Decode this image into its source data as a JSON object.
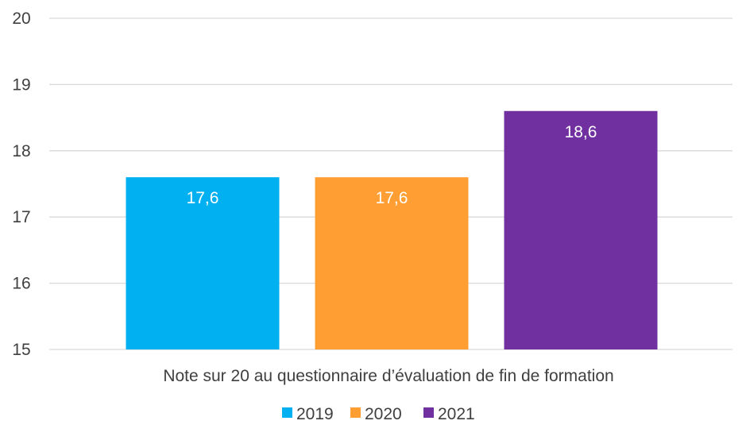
{
  "chart_data": {
    "type": "bar",
    "categories": [
      "Note sur 20 au questionnaire d’évaluation de fin de formation"
    ],
    "series": [
      {
        "name": "2019",
        "values": [
          17.6
        ],
        "label": "17,6",
        "color": "#00B0F0"
      },
      {
        "name": "2020",
        "values": [
          17.6
        ],
        "label": "17,6",
        "color": "#FF9F33"
      },
      {
        "name": "2021",
        "values": [
          18.6
        ],
        "label": "18,6",
        "color": "#7030A0"
      }
    ],
    "yticks": [
      15,
      16,
      17,
      18,
      19,
      20
    ],
    "ylim": [
      15,
      20
    ],
    "grid": true,
    "legend_position": "bottom",
    "title": "",
    "xlabel": "",
    "ylabel": ""
  }
}
